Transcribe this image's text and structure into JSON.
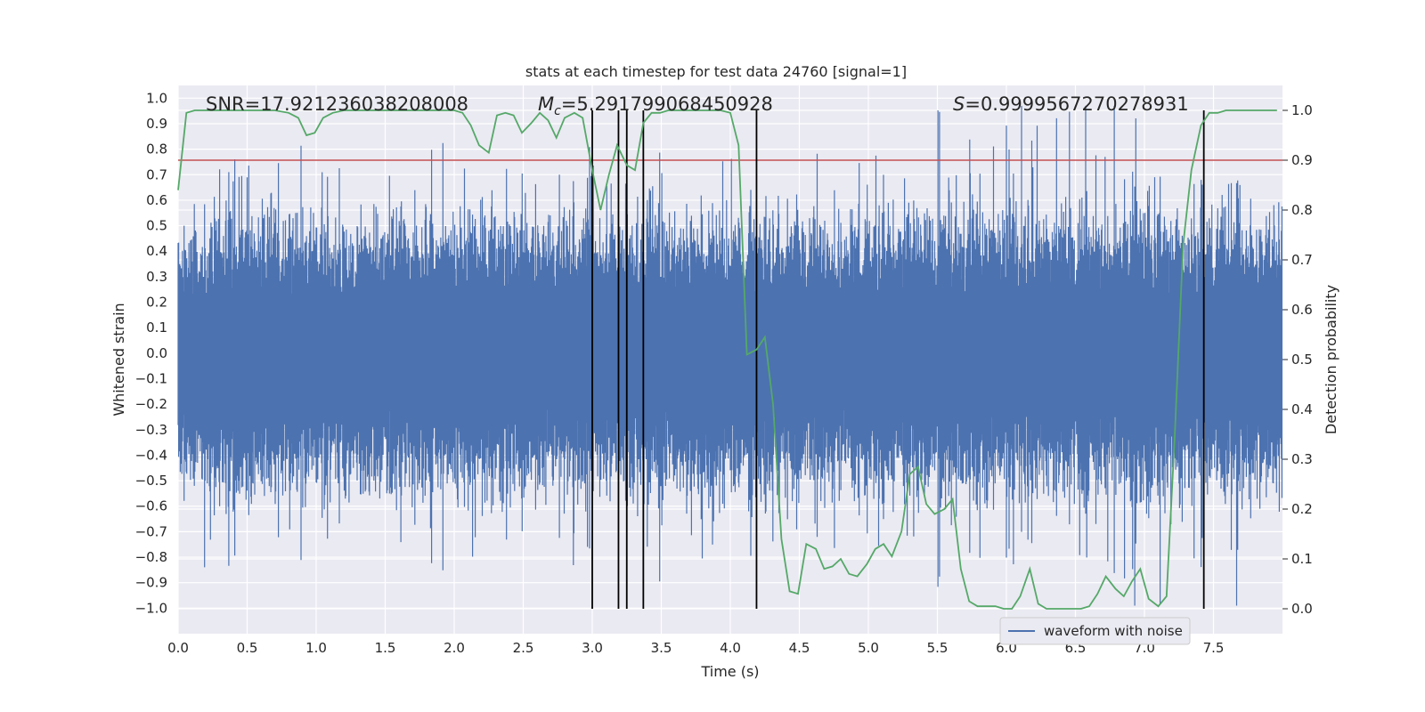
{
  "chart_data": {
    "type": "line",
    "title": "stats at each timestep for test data 24760 [signal=1]",
    "xlabel": "Time (s)",
    "ylabel_left": "Whitened strain",
    "ylabel_right": "Detection probability",
    "xlim": [
      0,
      8
    ],
    "ylim_left": [
      -1.1,
      1.05
    ],
    "ylim_right": [
      -0.05,
      1.05
    ],
    "x_ticks": [
      0.0,
      0.5,
      1.0,
      1.5,
      2.0,
      2.5,
      3.0,
      3.5,
      4.0,
      4.5,
      5.0,
      5.5,
      6.0,
      6.5,
      7.0,
      7.5
    ],
    "y_ticks_left": [
      1.0,
      0.9,
      0.8,
      0.7,
      0.6,
      0.5,
      0.4,
      0.3,
      0.2,
      0.1,
      0.0,
      -0.1,
      -0.2,
      -0.3,
      -0.4,
      -0.5,
      -0.6,
      -0.7,
      -0.8,
      -0.9,
      -1.0
    ],
    "y_ticks_right": [
      1.0,
      0.9,
      0.8,
      0.7,
      0.6,
      0.5,
      0.4,
      0.3,
      0.2,
      0.1,
      0.0
    ],
    "grid": true,
    "legend": {
      "position": "lower-right",
      "entries": [
        "waveform with noise"
      ]
    },
    "annotations": {
      "snr": "SNR=17.921236038208008",
      "mc_symbol": "M",
      "mc_sub": "c",
      "mc_value": "=5.291799068450928",
      "s_symbol": "S",
      "s_value": "=0.9999567270278931"
    },
    "threshold": {
      "value": 0.9,
      "axis": "right",
      "color": "#c44e52"
    },
    "vertical_lines": [
      3.0,
      3.19,
      3.25,
      3.37,
      4.19,
      7.43
    ],
    "series": [
      {
        "name": "waveform with noise",
        "axis": "left",
        "color": "#4c72b0",
        "sample_rate": 256,
        "duration": 8
      },
      {
        "axis": "right",
        "color": "#55a868",
        "x": [
          0.0,
          0.06,
          0.12,
          0.2,
          0.3,
          0.4,
          0.5,
          0.6,
          0.7,
          0.8,
          0.87,
          0.93,
          0.99,
          1.05,
          1.12,
          1.2,
          1.3,
          1.4,
          1.5,
          1.6,
          1.7,
          1.8,
          1.9,
          2.0,
          2.06,
          2.12,
          2.18,
          2.25,
          2.31,
          2.37,
          2.43,
          2.49,
          2.56,
          2.62,
          2.68,
          2.74,
          2.8,
          2.87,
          2.93,
          3.0,
          3.06,
          3.12,
          3.18,
          3.25,
          3.31,
          3.37,
          3.43,
          3.49,
          3.55,
          3.62,
          3.68,
          3.74,
          3.8,
          3.86,
          3.93,
          4.0,
          4.06,
          4.12,
          4.19,
          4.25,
          4.31,
          4.37,
          4.43,
          4.49,
          4.55,
          4.62,
          4.68,
          4.74,
          4.8,
          4.86,
          4.92,
          4.99,
          5.05,
          5.11,
          5.17,
          5.24,
          5.3,
          5.36,
          5.42,
          5.48,
          5.55,
          5.61,
          5.67,
          5.73,
          5.79,
          5.86,
          5.92,
          5.98,
          6.04,
          6.1,
          6.17,
          6.23,
          6.29,
          6.35,
          6.41,
          6.48,
          6.54,
          6.6,
          6.66,
          6.72,
          6.79,
          6.85,
          6.91,
          6.97,
          7.03,
          7.1,
          7.16,
          7.22,
          7.28,
          7.34,
          7.41,
          7.47,
          7.53,
          7.59,
          7.65,
          7.72,
          7.78,
          7.84,
          7.9,
          7.96
        ],
        "y": [
          0.84,
          0.995,
          1.0,
          1.0,
          1.0,
          1.0,
          1.0,
          1.0,
          1.0,
          0.995,
          0.985,
          0.95,
          0.955,
          0.985,
          0.995,
          1.0,
          1.0,
          1.0,
          1.0,
          1.0,
          1.0,
          1.0,
          1.0,
          1.0,
          0.995,
          0.97,
          0.93,
          0.915,
          0.99,
          0.995,
          0.99,
          0.955,
          0.975,
          0.995,
          0.98,
          0.945,
          0.985,
          0.995,
          0.985,
          0.88,
          0.8,
          0.87,
          0.93,
          0.89,
          0.88,
          0.975,
          0.995,
          0.995,
          1.0,
          1.0,
          1.0,
          1.0,
          1.0,
          1.0,
          1.0,
          0.995,
          0.93,
          0.51,
          0.52,
          0.545,
          0.41,
          0.14,
          0.035,
          0.03,
          0.13,
          0.12,
          0.08,
          0.085,
          0.1,
          0.07,
          0.065,
          0.09,
          0.12,
          0.13,
          0.105,
          0.155,
          0.27,
          0.285,
          0.21,
          0.19,
          0.2,
          0.22,
          0.08,
          0.015,
          0.005,
          0.005,
          0.005,
          0.0,
          0.0,
          0.025,
          0.08,
          0.01,
          0.0,
          0.0,
          0.0,
          0.0,
          0.0,
          0.005,
          0.03,
          0.065,
          0.04,
          0.025,
          0.055,
          0.08,
          0.02,
          0.005,
          0.025,
          0.35,
          0.73,
          0.88,
          0.97,
          0.995,
          0.995,
          1.0,
          1.0,
          1.0,
          1.0,
          1.0,
          1.0,
          1.0
        ]
      }
    ]
  }
}
